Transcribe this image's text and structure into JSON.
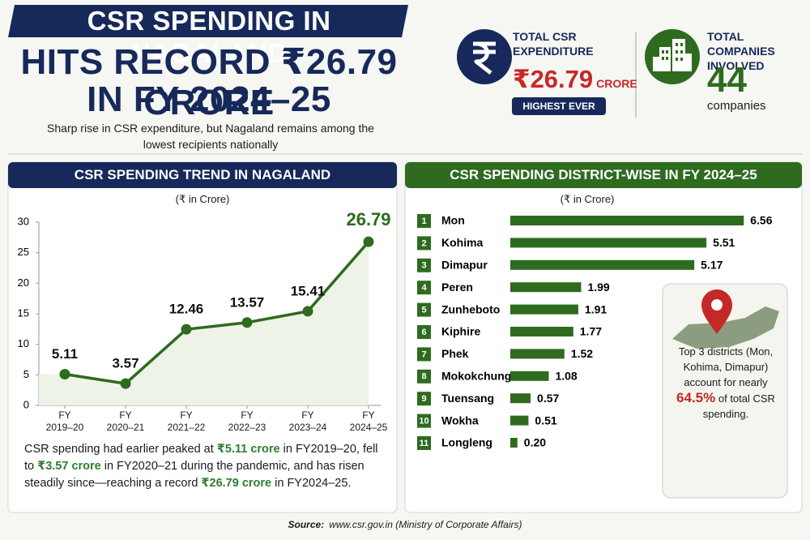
{
  "header": {
    "title_lines": [
      "CSR SPENDING IN NAGALAND",
      "HITS RECORD ₹26.79 CRORE",
      "IN FY 2024–25"
    ],
    "subtitle": "Sharp rise in CSR expenditure, but Nagaland remains among the lowest recipients nationally"
  },
  "stats": {
    "expenditure": {
      "label": "TOTAL CSR EXPENDITURE",
      "value": "₹26.79",
      "unit": "CRORE",
      "badge": "HIGHEST EVER"
    },
    "companies": {
      "label": "TOTAL COMPANIES INVOLVED",
      "value": 44,
      "unit": "companies"
    }
  },
  "chart_data": [
    {
      "type": "line",
      "title": "CSR SPENDING TREND IN NAGALAND",
      "subtitle": "(₹ in Crore)",
      "categories": [
        "FY\n2019–20",
        "FY\n2020–21",
        "FY\n2021–22",
        "FY\n2022–23",
        "FY\n2023–24",
        "FY\n2024–25"
      ],
      "values": [
        5.11,
        3.57,
        12.46,
        13.57,
        15.41,
        26.79
      ],
      "color": "#2e6b1f",
      "ylim": [
        0,
        30
      ],
      "yticks": [
        0,
        5,
        10,
        15,
        20,
        25,
        30
      ],
      "grid": false
    },
    {
      "type": "hbar",
      "title": "CSR SPENDING DISTRICT-WISE IN FY 2024–25",
      "subtitle": "(₹ in Crore)",
      "ranks": [
        "1",
        "2",
        "3",
        "4",
        "5",
        "6",
        "7",
        "8",
        "9",
        "10",
        "11"
      ],
      "categories": [
        "Mon",
        "Kohima",
        "Dimapur",
        "Peren",
        "Zunheboto",
        "Kiphire",
        "Phek",
        "Mokokchung",
        "Tuensang",
        "Wokha",
        "Longleng"
      ],
      "values": [
        6.56,
        5.51,
        5.17,
        1.99,
        1.91,
        1.77,
        1.52,
        1.08,
        0.57,
        0.51,
        0.2
      ],
      "value_labels": [
        "6.56",
        "5.51",
        "5.17",
        "1.99",
        "1.91",
        "1.77",
        "1.52",
        "1.08",
        "0.57",
        "0.51",
        "0.20"
      ],
      "color": "#2e6b1f",
      "xlim": [
        0,
        6.6
      ],
      "annotation": {
        "before": "Top 3 districts (Mon, Kohima, Dimapur) account for nearly",
        "highlight": "64.5%",
        "after": "of total CSR spending."
      }
    }
  ],
  "note": {
    "parts": [
      "CSR spending had earlier peaked at ",
      "₹5.11 crore",
      " in FY2019–20, fell to ",
      "₹3.57 crore",
      " in FY2020–21 during the pandemic, and has risen steadily since—reaching a record ",
      "₹26.79 crore",
      " in FY2024–25."
    ]
  },
  "source": {
    "label": "Source:",
    "text": "www.csr.gov.in (Ministry of Corporate Affairs)"
  }
}
